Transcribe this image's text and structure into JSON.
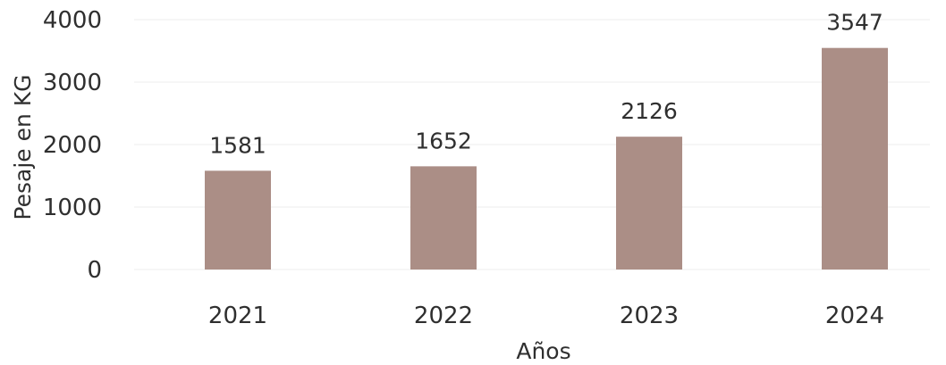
{
  "chart_data": {
    "type": "bar",
    "categories": [
      "2021",
      "2022",
      "2023",
      "2024"
    ],
    "values": [
      1581,
      1652,
      2126,
      3547
    ],
    "xlabel": "Años",
    "ylabel": "Pesaje en KG",
    "ylim": [
      0,
      4000
    ],
    "yticks": [
      0,
      1000,
      2000,
      3000,
      4000
    ],
    "grid": true,
    "data_labels": true,
    "colors": {
      "bar": "#ab8e86",
      "text": "#2f2f2f",
      "grid": "#eeeeee"
    }
  }
}
